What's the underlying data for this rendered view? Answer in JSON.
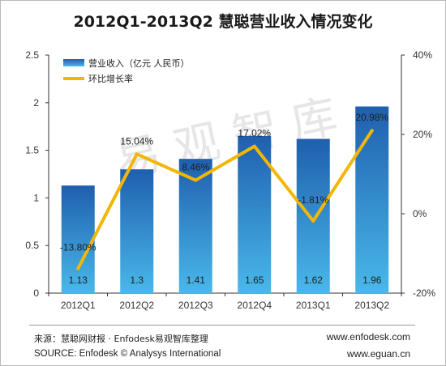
{
  "title": "2012Q1-2013Q2 慧聪营业收入情况变化",
  "watermark": "易 观 智 库",
  "chart_data": {
    "type": "bar",
    "categories": [
      "2012Q1",
      "2012Q2",
      "2012Q3",
      "2012Q4",
      "2013Q1",
      "2013Q2"
    ],
    "series": [
      {
        "name": "营业收入（亿元  人民币）",
        "type": "bar",
        "axis": "left",
        "values": [
          1.13,
          1.3,
          1.41,
          1.65,
          1.62,
          1.96
        ],
        "labels": [
          "1.13",
          "1.3",
          "1.41",
          "1.65",
          "1.62",
          "1.96"
        ]
      },
      {
        "name": "环比增长率",
        "type": "line",
        "axis": "right",
        "unit": "%",
        "values": [
          -13.8,
          15.04,
          8.46,
          17.02,
          -1.81,
          20.98
        ],
        "labels": [
          "-13.80%",
          "15.04%",
          "8.46%",
          "17.02%",
          "-1.81%",
          "20.98%"
        ]
      }
    ],
    "y_left": {
      "min": 0,
      "max": 2.5,
      "ticks": [
        "0",
        "0.5",
        "1",
        "1.5",
        "2",
        "2.5"
      ]
    },
    "y_right": {
      "min": -20,
      "max": 40,
      "ticks": [
        "-20%",
        "0%",
        "20%",
        "40%"
      ]
    },
    "legend_position": "top-left",
    "grid": false,
    "colors": {
      "bar_top": "#1f5fae",
      "bar_bottom": "#49b8ea",
      "line": "#f2b705"
    }
  },
  "footer": {
    "source_cn": "来源：慧聪网财报 · Enfodesk易观智库整理",
    "source_en": "SOURCE: Enfodesk © Analysys International",
    "url1": "www.enfodesk.com",
    "url2": "www.eguan.cn"
  }
}
